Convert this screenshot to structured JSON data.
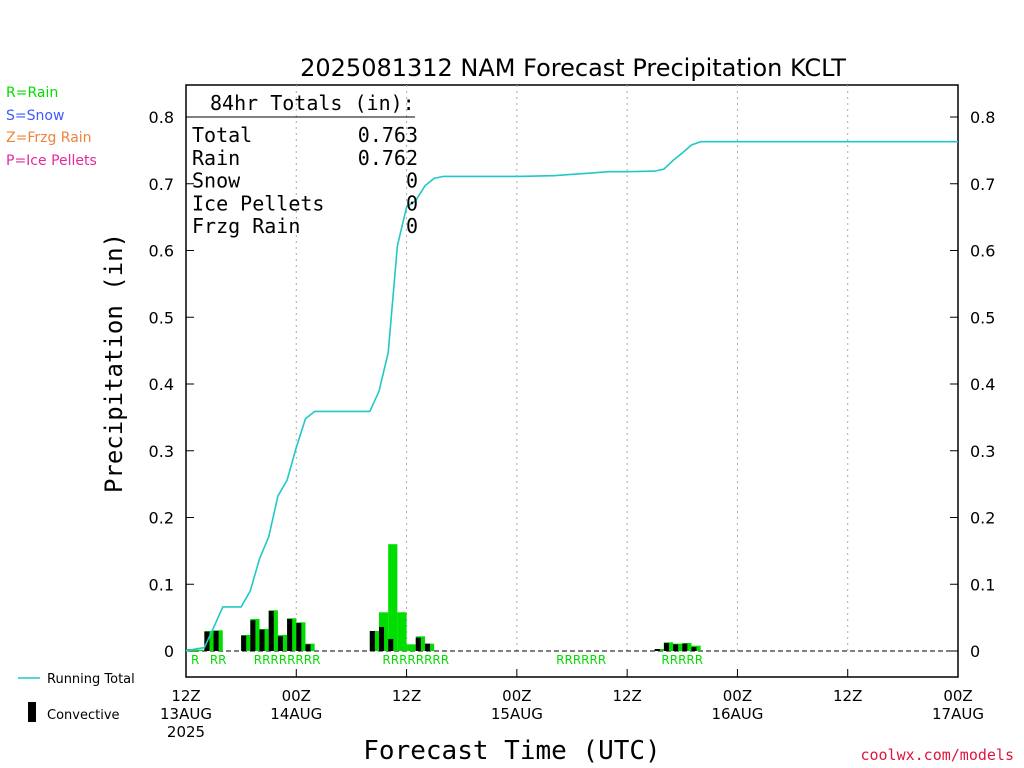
{
  "page": {
    "credit": "coolwx.com/models"
  },
  "precip_type_legend": [
    {
      "label": "R=Rain",
      "color": "#00dd00"
    },
    {
      "label": "S=Snow",
      "color": "#3c5aff"
    },
    {
      "label": "Z=Frzg Rain",
      "color": "#f0823c"
    },
    {
      "label": "P=Ice Pellets",
      "color": "#e6289b"
    }
  ],
  "series_legend": {
    "running_total": "Running Total",
    "convective": "Convective"
  },
  "totals_box": {
    "heading": "84hr Totals (in):",
    "rows": [
      {
        "label": "Total",
        "value": "0.763"
      },
      {
        "label": "Rain",
        "value": "0.762"
      },
      {
        "label": "Snow",
        "value": "0"
      },
      {
        "label": "Ice Pellets",
        "value": "0"
      },
      {
        "label": "Frzg Rain",
        "value": "0"
      }
    ]
  },
  "colors": {
    "rain_bar": "#00dd00",
    "convective_bar": "#000000",
    "running_total": "#20c8c8",
    "grid": "#aaaaaa"
  },
  "chart_data": {
    "type": "bar",
    "title": "2025081312 NAM Forecast Precipitation KCLT",
    "xlabel": "Forecast Time (UTC)",
    "ylabel": "Precipitation (in)",
    "ylim": [
      0,
      0.84
    ],
    "xlim_hours": [
      0,
      84
    ],
    "y_ticks": [
      "0",
      "0.1",
      "0.2",
      "0.3",
      "0.4",
      "0.5",
      "0.6",
      "0.7",
      "0.8"
    ],
    "x_ticks": [
      {
        "hour": 0,
        "lines": [
          "12Z",
          "13AUG",
          "2025"
        ]
      },
      {
        "hour": 12,
        "lines": [
          "00Z",
          "14AUG"
        ]
      },
      {
        "hour": 24,
        "lines": [
          "12Z"
        ]
      },
      {
        "hour": 36,
        "lines": [
          "00Z",
          "15AUG"
        ]
      },
      {
        "hour": 48,
        "lines": [
          "12Z"
        ]
      },
      {
        "hour": 60,
        "lines": [
          "00Z",
          "16AUG"
        ]
      },
      {
        "hour": 72,
        "lines": [
          "12Z"
        ]
      },
      {
        "hour": 84,
        "lines": [
          "00Z",
          "17AUG"
        ]
      }
    ],
    "grid": "vertical dotted at 00Z and 12Z",
    "hourly_precip": {
      "hours": [
        1,
        2,
        3,
        4,
        7,
        8,
        9,
        10,
        11,
        12,
        13,
        14,
        15,
        21,
        22,
        23,
        24,
        25,
        26,
        27,
        28,
        52,
        53,
        54,
        55,
        56
      ],
      "total": [
        0.003,
        0.002,
        0.03,
        0.031,
        0.024,
        0.048,
        0.033,
        0.061,
        0.024,
        0.049,
        0.043,
        0.011,
        0.0,
        0.03,
        0.058,
        0.16,
        0.058,
        0.01,
        0.022,
        0.011,
        0.0,
        0.003,
        0.013,
        0.011,
        0.012,
        0.008
      ],
      "convective": [
        0.0,
        0.0,
        0.029,
        0.03,
        0.023,
        0.046,
        0.032,
        0.06,
        0.022,
        0.048,
        0.042,
        0.01,
        0.0,
        0.03,
        0.036,
        0.018,
        0.0,
        0.0,
        0.02,
        0.011,
        0.0,
        0.003,
        0.012,
        0.01,
        0.011,
        0.006
      ]
    },
    "running_total": {
      "hours": [
        0,
        1,
        2,
        3,
        4,
        5,
        6,
        7,
        8,
        9,
        10,
        11,
        12,
        13,
        14,
        15,
        16,
        17,
        18,
        19,
        20,
        21,
        22,
        23,
        24,
        25,
        26,
        27,
        28,
        30,
        36,
        40,
        44,
        46,
        48,
        51,
        52,
        53,
        54,
        55,
        56,
        84
      ],
      "values": [
        0.0,
        0.003,
        0.005,
        0.035,
        0.066,
        0.066,
        0.066,
        0.09,
        0.138,
        0.171,
        0.232,
        0.256,
        0.305,
        0.348,
        0.359,
        0.359,
        0.359,
        0.359,
        0.359,
        0.359,
        0.359,
        0.389,
        0.447,
        0.607,
        0.665,
        0.675,
        0.697,
        0.708,
        0.711,
        0.711,
        0.711,
        0.712,
        0.716,
        0.718,
        0.718,
        0.719,
        0.722,
        0.735,
        0.746,
        0.758,
        0.763,
        0.763
      ]
    },
    "precip_type_labels": [
      {
        "hour": 1,
        "text": "R"
      },
      {
        "hour": 3.5,
        "text": "RR"
      },
      {
        "hour": 11,
        "text": "RRRRRRRR"
      },
      {
        "hour": 25,
        "text": "RRRRRRRR"
      },
      {
        "hour": 43,
        "text": "RRRRRR"
      },
      {
        "hour": 54,
        "text": "RRRRR"
      }
    ]
  }
}
